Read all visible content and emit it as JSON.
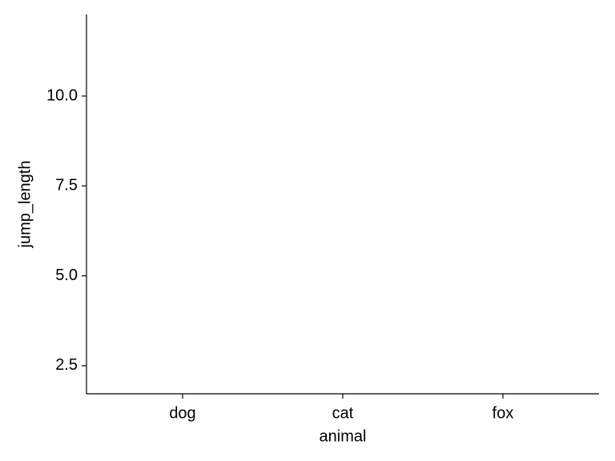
{
  "chart_data": {
    "type": "point",
    "x_label": "animal",
    "y_label": "jump_length",
    "categories": [
      "dog",
      "cat",
      "fox"
    ],
    "ylim": [
      1.72,
      12.27
    ],
    "yticks": [
      2.5,
      {
        "value": 5,
        "label": "5.0"
      },
      7.5,
      {
        "value": 10,
        "label": "10.0"
      }
    ],
    "grid": false
  }
}
